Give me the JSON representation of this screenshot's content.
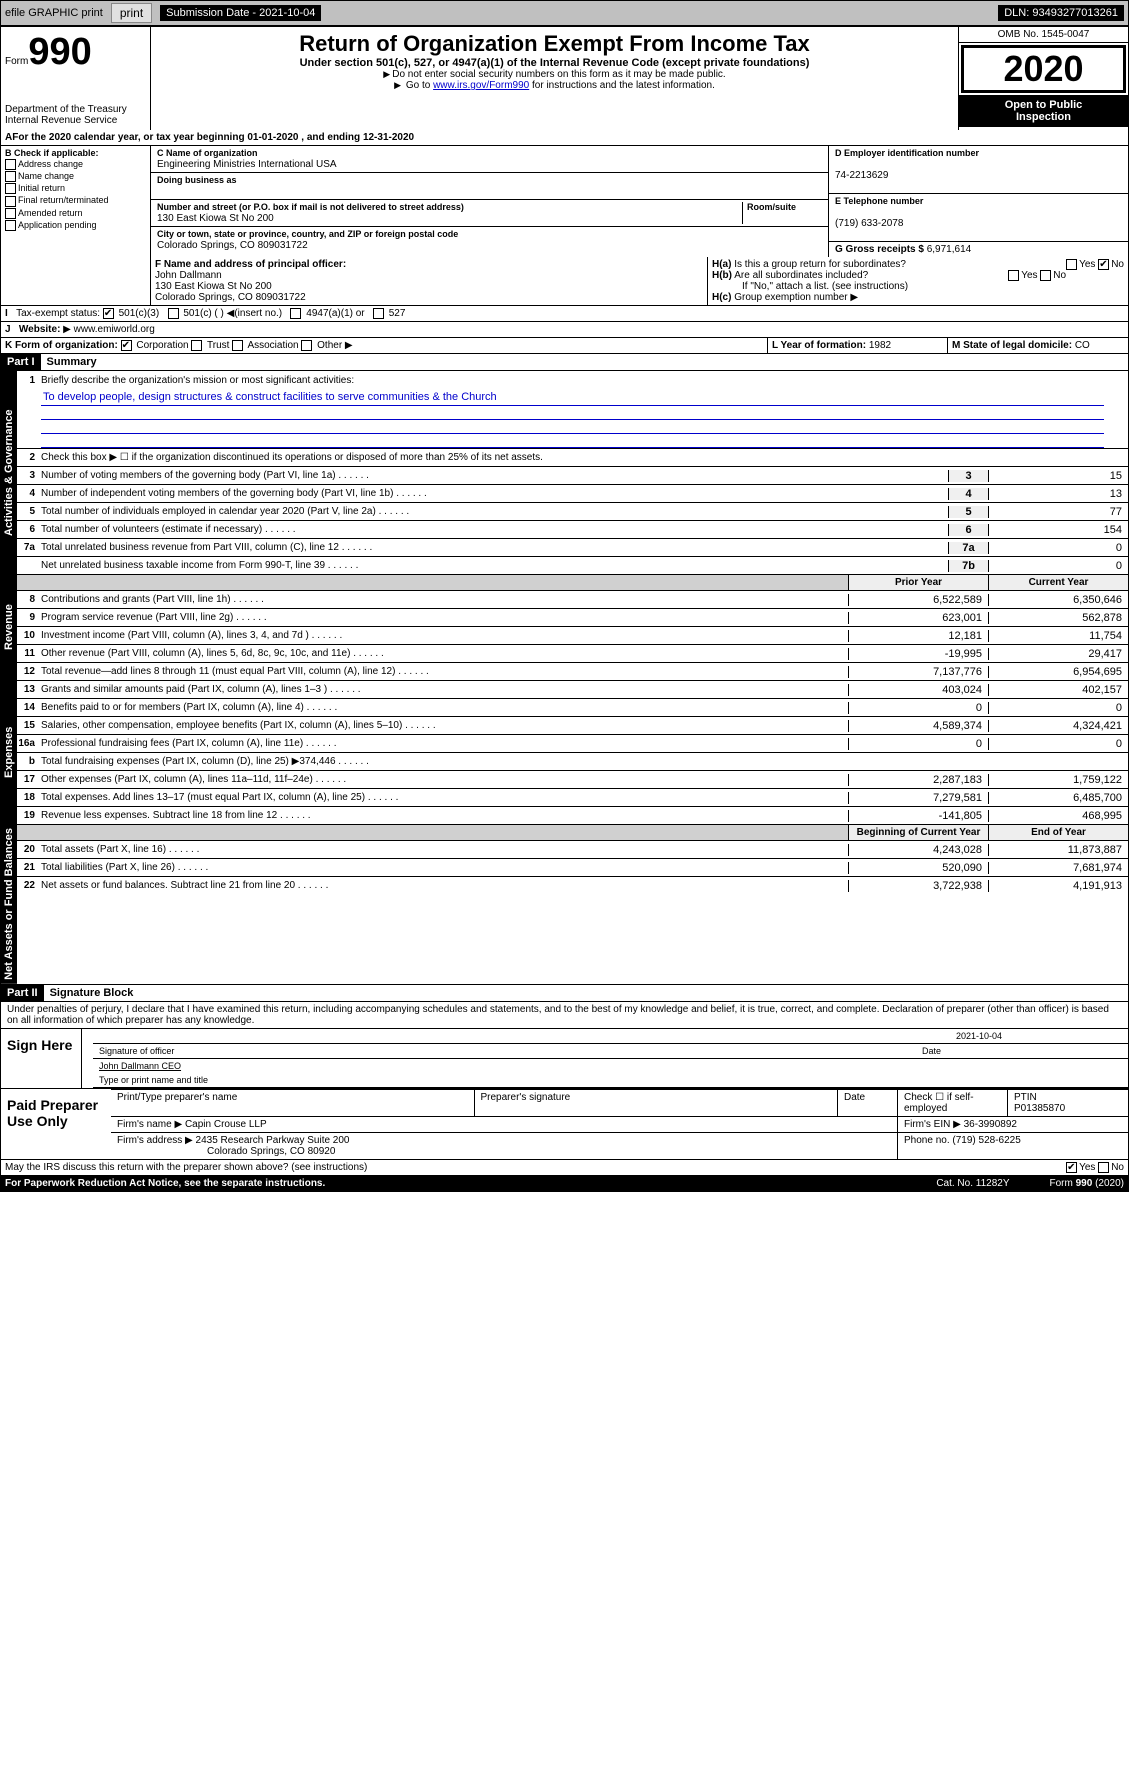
{
  "topbar": {
    "efile": "efile GRAPHIC print",
    "submission_label": "Submission Date - 2021-10-04",
    "dln_label": "DLN: 93493277013261"
  },
  "header": {
    "form_word": "Form",
    "form_num": "990",
    "dept": "Department of the Treasury",
    "irs": "Internal Revenue Service",
    "title": "Return of Organization Exempt From Income Tax",
    "subtitle": "Under section 501(c), 527, or 4947(a)(1) of the Internal Revenue Code (except private foundations)",
    "note1": "Do not enter social security numbers on this form as it may be made public.",
    "note2_pre": "Go to ",
    "note2_link": "www.irs.gov/Form990",
    "note2_post": " for instructions and the latest information.",
    "omb": "OMB No. 1545-0047",
    "year": "2020",
    "inspect1": "Open to Public",
    "inspect2": "Inspection"
  },
  "period": {
    "text_pre": "For the 2020 calendar year, or tax year beginning ",
    "begin": "01-01-2020",
    "mid": " , and ending ",
    "end": "12-31-2020"
  },
  "boxB": {
    "title": "B Check if applicable:",
    "opts": [
      "Address change",
      "Name change",
      "Initial return",
      "Final return/terminated",
      "Amended return",
      "Application pending"
    ]
  },
  "boxC": {
    "name_lbl": "C Name of organization",
    "name": "Engineering Ministries International USA",
    "dba_lbl": "Doing business as",
    "dba": "",
    "addr_lbl": "Number and street (or P.O. box if mail is not delivered to street address)",
    "room_lbl": "Room/suite",
    "addr": "130 East Kiowa St No 200",
    "city_lbl": "City or town, state or province, country, and ZIP or foreign postal code",
    "city": "Colorado Springs, CO  809031722"
  },
  "boxD": {
    "lbl": "D Employer identification number",
    "val": "74-2213629"
  },
  "boxE": {
    "lbl": "E Telephone number",
    "val": "(719) 633-2078"
  },
  "boxG": {
    "lbl": "G Gross receipts $",
    "val": "6,971,614"
  },
  "boxF": {
    "lbl": "F Name and address of principal officer:",
    "name": "John Dallmann",
    "addr1": "130 East Kiowa St No 200",
    "addr2": "Colorado Springs, CO  809031722"
  },
  "boxH": {
    "a": "Is this a group return for subordinates?",
    "b": "Are all subordinates included?",
    "c": "Group exemption number",
    "note": "If \"No,\" attach a list. (see instructions)",
    "yes": "Yes",
    "no": "No"
  },
  "taxexempt": {
    "lbl": "Tax-exempt status:",
    "c3": "501(c)(3)",
    "c": "501(c) (  )",
    "ins": "(insert no.)",
    "a1": "4947(a)(1) or",
    "s527": "527"
  },
  "website": {
    "lbl": "Website:",
    "val": "www.emiworld.org"
  },
  "boxK": {
    "lbl": "K Form of organization:",
    "corp": "Corporation",
    "trust": "Trust",
    "assoc": "Association",
    "other": "Other"
  },
  "boxL": {
    "lbl": "L Year of formation:",
    "val": "1982"
  },
  "boxM": {
    "lbl": "M State of legal domicile:",
    "val": "CO"
  },
  "part1": {
    "hdr": "Part I",
    "title": "Summary"
  },
  "summary": {
    "q1": "Briefly describe the organization's mission or most significant activities:",
    "mission": "To develop people, design structures & construct facilities to serve communities & the Church",
    "q2": "Check this box ▶ ☐  if the organization discontinued its operations or disposed of more than 25% of its net assets.",
    "rows_top": [
      {
        "n": "3",
        "d": "Number of voting members of the governing body (Part VI, line 1a)",
        "nc": "3",
        "v": "15"
      },
      {
        "n": "4",
        "d": "Number of independent voting members of the governing body (Part VI, line 1b)",
        "nc": "4",
        "v": "13"
      },
      {
        "n": "5",
        "d": "Total number of individuals employed in calendar year 2020 (Part V, line 2a)",
        "nc": "5",
        "v": "77"
      },
      {
        "n": "6",
        "d": "Total number of volunteers (estimate if necessary)",
        "nc": "6",
        "v": "154"
      },
      {
        "n": "7a",
        "d": "Total unrelated business revenue from Part VIII, column (C), line 12",
        "nc": "7a",
        "v": "0"
      },
      {
        "n": "",
        "d": "Net unrelated business taxable income from Form 990-T, line 39",
        "nc": "7b",
        "v": "0"
      }
    ],
    "col_hdr_prior": "Prior Year",
    "col_hdr_curr": "Current Year",
    "rev": [
      {
        "n": "8",
        "d": "Contributions and grants (Part VIII, line 1h)",
        "p": "6,522,589",
        "c": "6,350,646"
      },
      {
        "n": "9",
        "d": "Program service revenue (Part VIII, line 2g)",
        "p": "623,001",
        "c": "562,878"
      },
      {
        "n": "10",
        "d": "Investment income (Part VIII, column (A), lines 3, 4, and 7d )",
        "p": "12,181",
        "c": "11,754"
      },
      {
        "n": "11",
        "d": "Other revenue (Part VIII, column (A), lines 5, 6d, 8c, 9c, 10c, and 11e)",
        "p": "-19,995",
        "c": "29,417"
      },
      {
        "n": "12",
        "d": "Total revenue—add lines 8 through 11 (must equal Part VIII, column (A), line 12)",
        "p": "7,137,776",
        "c": "6,954,695"
      }
    ],
    "exp": [
      {
        "n": "13",
        "d": "Grants and similar amounts paid (Part IX, column (A), lines 1–3 )",
        "p": "403,024",
        "c": "402,157"
      },
      {
        "n": "14",
        "d": "Benefits paid to or for members (Part IX, column (A), line 4)",
        "p": "0",
        "c": "0"
      },
      {
        "n": "15",
        "d": "Salaries, other compensation, employee benefits (Part IX, column (A), lines 5–10)",
        "p": "4,589,374",
        "c": "4,324,421"
      },
      {
        "n": "16a",
        "d": "Professional fundraising fees (Part IX, column (A), line 11e)",
        "p": "0",
        "c": "0"
      },
      {
        "n": "b",
        "d": "Total fundraising expenses (Part IX, column (D), line 25) ▶374,446",
        "p": "",
        "c": "",
        "grey": true
      },
      {
        "n": "17",
        "d": "Other expenses (Part IX, column (A), lines 11a–11d, 11f–24e)",
        "p": "2,287,183",
        "c": "1,759,122"
      },
      {
        "n": "18",
        "d": "Total expenses. Add lines 13–17 (must equal Part IX, column (A), line 25)",
        "p": "7,279,581",
        "c": "6,485,700"
      },
      {
        "n": "19",
        "d": "Revenue less expenses. Subtract line 18 from line 12",
        "p": "-141,805",
        "c": "468,995"
      }
    ],
    "col_hdr_begin": "Beginning of Current Year",
    "col_hdr_end": "End of Year",
    "net": [
      {
        "n": "20",
        "d": "Total assets (Part X, line 16)",
        "p": "4,243,028",
        "c": "11,873,887"
      },
      {
        "n": "21",
        "d": "Total liabilities (Part X, line 26)",
        "p": "520,090",
        "c": "7,681,974"
      },
      {
        "n": "22",
        "d": "Net assets or fund balances. Subtract line 21 from line 20",
        "p": "3,722,938",
        "c": "4,191,913"
      }
    ]
  },
  "sidehead": {
    "gov": "Activities & Governance",
    "rev": "Revenue",
    "exp": "Expenses",
    "net": "Net Assets or Fund Balances"
  },
  "part2": {
    "hdr": "Part II",
    "title": "Signature Block"
  },
  "perjury": "Under penalties of perjury, I declare that I have examined this return, including accompanying schedules and statements, and to the best of my knowledge and belief, it is true, correct, and complete. Declaration of preparer (other than officer) is based on all information of which preparer has any knowledge.",
  "sign": {
    "here": "Sign Here",
    "sig_lbl": "Signature of officer",
    "date_lbl": "Date",
    "date": "2021-10-04",
    "name": "John Dallmann CEO",
    "name_lbl": "Type or print name and title"
  },
  "prep": {
    "here": "Paid Preparer Use Only",
    "h1": "Print/Type preparer's name",
    "h2": "Preparer's signature",
    "h3": "Date",
    "h4a": "Check ☐ if self-employed",
    "h4b_lbl": "PTIN",
    "h4b": "P01385870",
    "firm_lbl": "Firm's name ▶",
    "firm": "Capin Crouse LLP",
    "ein_lbl": "Firm's EIN ▶",
    "ein": "36-3990892",
    "addr_lbl": "Firm's address ▶",
    "addr1": "2435 Research Parkway Suite 200",
    "addr2": "Colorado Springs, CO  80920",
    "phone_lbl": "Phone no.",
    "phone": "(719) 528-6225"
  },
  "footer": {
    "discuss": "May the IRS discuss this return with the preparer shown above? (see instructions)",
    "yes": "Yes",
    "no": "No",
    "pra": "For Paperwork Reduction Act Notice, see the separate instructions.",
    "cat": "Cat. No. 11282Y",
    "form": "Form 990 (2020)"
  },
  "style": {
    "bg_topbar": "#c0c0c0",
    "link_color": "#0000cc",
    "black": "#000000",
    "white": "#ffffff",
    "grey_fill": "#d0d0d0"
  }
}
